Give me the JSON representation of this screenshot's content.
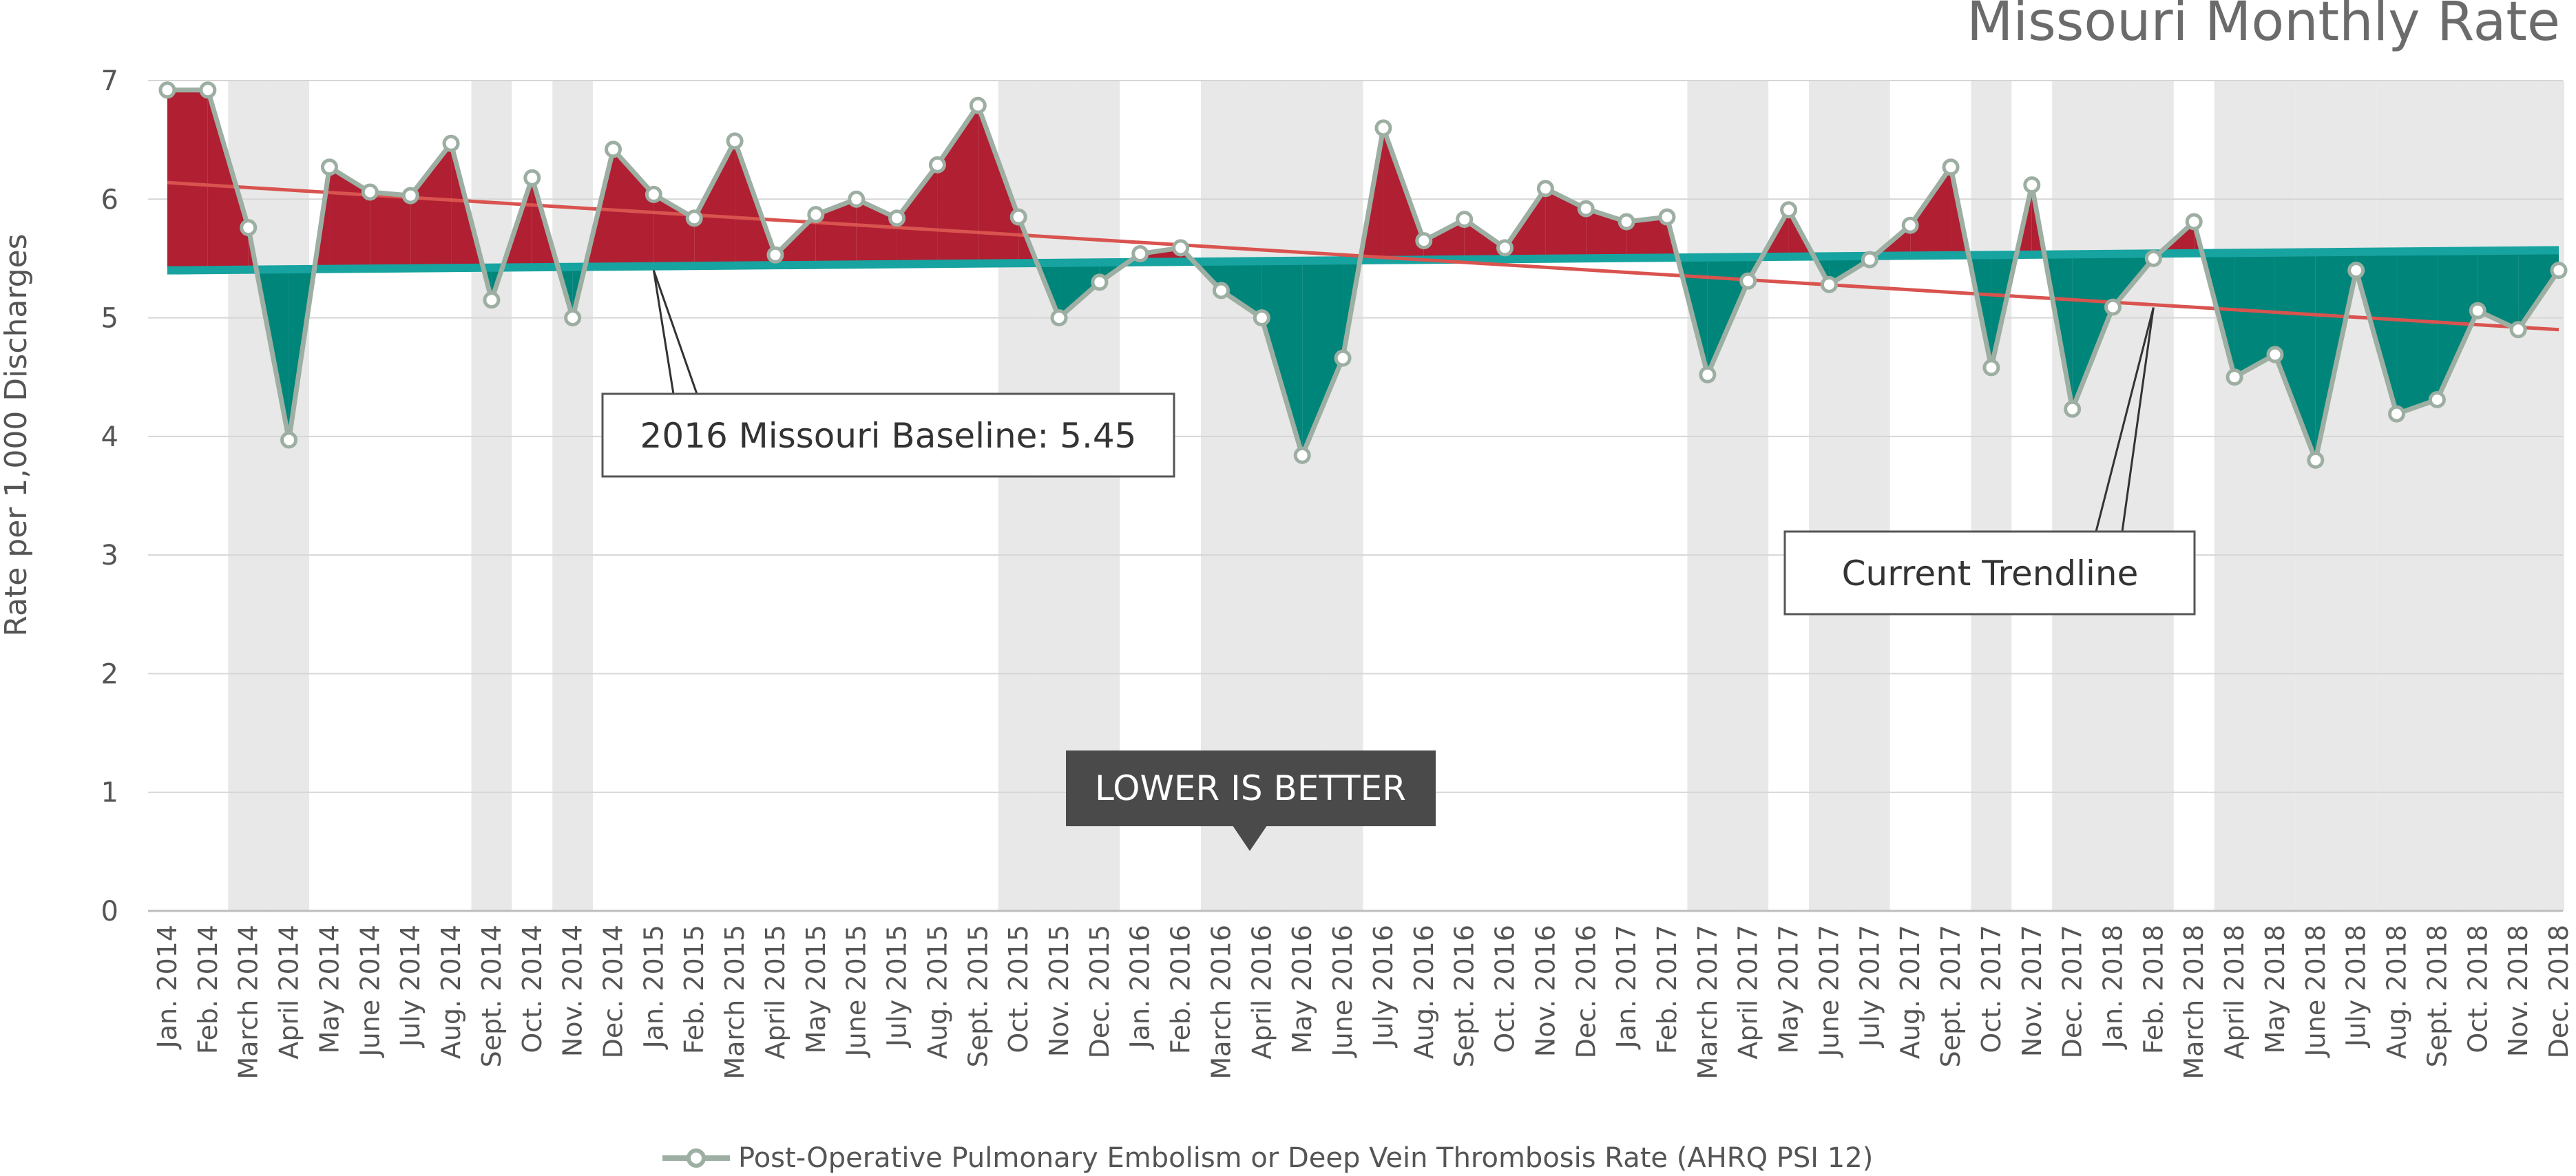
{
  "chart_data": {
    "type": "area",
    "title": "Missouri Monthly Rate",
    "ylabel": "Rate per 1,000 Discharges",
    "xlabel": "",
    "ylim": [
      0,
      7
    ],
    "yticks": [
      0,
      1,
      2,
      3,
      4,
      5,
      6,
      7
    ],
    "grid": "horizontal",
    "legend_position": "bottom-center",
    "categories": [
      "Jan. 2014",
      "Feb. 2014",
      "March 2014",
      "April 2014",
      "May 2014",
      "June 2014",
      "July 2014",
      "Aug. 2014",
      "Sept. 2014",
      "Oct. 2014",
      "Nov. 2014",
      "Dec. 2014",
      "Jan. 2015",
      "Feb. 2015",
      "March 2015",
      "April 2015",
      "May 2015",
      "June 2015",
      "July 2015",
      "Aug. 2015",
      "Sept. 2015",
      "Oct. 2015",
      "Nov. 2015",
      "Dec. 2015",
      "Jan. 2016",
      "Feb. 2016",
      "March 2016",
      "April 2016",
      "May 2016",
      "June 2016",
      "July 2016",
      "Aug. 2016",
      "Sept. 2016",
      "Oct. 2016",
      "Nov. 2016",
      "Dec. 2016",
      "Jan. 2017",
      "Feb. 2017",
      "March 2017",
      "April 2017",
      "May 2017",
      "June 2017",
      "July 2017",
      "Aug. 2017",
      "Sept. 2017",
      "Oct. 2017",
      "Nov. 2017",
      "Dec. 2017",
      "Jan. 2018",
      "Feb. 2018",
      "March 2018",
      "April 2018",
      "May 2018",
      "June 2018",
      "July 2018",
      "Aug. 2018",
      "Sept. 2018",
      "Oct. 2018",
      "Nov. 2018",
      "Dec. 2018"
    ],
    "series": [
      {
        "name": "Post-Operative Pulmonary Embolism or Deep Vein Thrombosis Rate (AHRQ PSI 12)",
        "color": "#9daea2",
        "values": [
          6.92,
          6.92,
          5.76,
          3.97,
          6.27,
          6.06,
          6.03,
          6.47,
          5.15,
          6.18,
          5.0,
          6.42,
          6.04,
          5.84,
          6.49,
          5.53,
          5.87,
          6.0,
          5.84,
          6.29,
          6.79,
          5.85,
          5.0,
          5.3,
          5.54,
          5.59,
          5.23,
          5.0,
          3.84,
          4.66,
          6.6,
          5.65,
          5.83,
          5.59,
          6.09,
          5.92,
          5.81,
          5.85,
          4.52,
          5.31,
          5.91,
          5.28,
          5.49,
          5.78,
          6.27,
          4.58,
          6.12,
          4.23,
          5.09,
          5.5,
          5.81,
          4.5,
          4.69,
          3.8,
          5.4,
          4.19,
          4.31,
          5.06,
          4.9,
          5.4
        ]
      }
    ],
    "baseline": {
      "start": 5.4,
      "end": 5.57,
      "color": "#17a3a0"
    },
    "trendline": {
      "start": 6.14,
      "end": 4.9,
      "color": "#d9534f"
    },
    "fill_above_color": "#b01f32",
    "fill_below_color": "#00857a",
    "shaded_months": [
      "March 2014",
      "April 2014",
      "Sept. 2014",
      "Nov. 2014",
      "Oct. 2015",
      "Nov. 2015",
      "Dec. 2015",
      "March 2016",
      "April 2016",
      "May 2016",
      "June 2016",
      "March 2017",
      "April 2017",
      "June 2017",
      "July 2017",
      "Oct. 2017",
      "Dec. 2017",
      "Jan. 2018",
      "Feb. 2018",
      "April 2018",
      "May 2018",
      "June 2018",
      "July 2018",
      "Aug. 2018",
      "Sept. 2018",
      "Oct. 2018",
      "Nov. 2018",
      "Dec. 2018"
    ],
    "shade_color": "#e8e8e8",
    "annotations": [
      {
        "text": "2016 Missouri Baseline: 5.45",
        "points_to": "Jan. 2015"
      },
      {
        "text": "Current Trendline",
        "points_to": "Feb. 2018"
      },
      {
        "text": "LOWER IS BETTER",
        "style": "dark-callout"
      }
    ]
  }
}
